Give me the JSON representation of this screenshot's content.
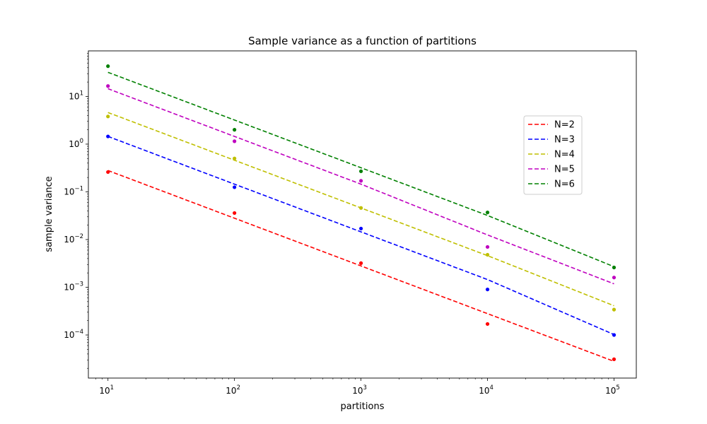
{
  "chart_data": {
    "type": "scatter",
    "title": "Sample variance as a function of partitions",
    "xlabel": "partitions",
    "ylabel": "sample variance",
    "xscale": "log",
    "yscale": "log",
    "xlim": [
      7,
      150000
    ],
    "ylim": [
      1.25e-05,
      90
    ],
    "x": [
      10,
      100,
      1000,
      10000,
      100000
    ],
    "x_ticks": [
      {
        "value": 10,
        "base": "10",
        "exp": "1"
      },
      {
        "value": 100,
        "base": "10",
        "exp": "2"
      },
      {
        "value": 1000,
        "base": "10",
        "exp": "3"
      },
      {
        "value": 10000,
        "base": "10",
        "exp": "4"
      },
      {
        "value": 100000,
        "base": "10",
        "exp": "5"
      }
    ],
    "y_ticks": [
      {
        "value": 0.0001,
        "base": "10",
        "exp": "−4"
      },
      {
        "value": 0.001,
        "base": "10",
        "exp": "−3"
      },
      {
        "value": 0.01,
        "base": "10",
        "exp": "−2"
      },
      {
        "value": 0.1,
        "base": "10",
        "exp": "−1"
      },
      {
        "value": 1,
        "base": "10",
        "exp": "0"
      },
      {
        "value": 10,
        "base": "10",
        "exp": "1"
      }
    ],
    "legend_position": "upper right (inset)",
    "grid": false,
    "series": [
      {
        "name": "N=2",
        "color": "#ff0000",
        "points": [
          0.26,
          0.036,
          0.0032,
          0.00017,
          3.1e-05
        ],
        "fit": [
          0.28,
          0.028,
          0.0028,
          0.00028,
          2.8e-05
        ]
      },
      {
        "name": "N=3",
        "color": "#0000ff",
        "points": [
          1.45,
          0.125,
          0.017,
          0.0009,
          0.0001
        ],
        "fit": [
          1.45,
          0.145,
          0.0145,
          0.00145,
          0.000102
        ]
      },
      {
        "name": "N=4",
        "color": "#bfbf00",
        "points": [
          3.8,
          0.5,
          0.046,
          0.0048,
          0.00034
        ],
        "fit": [
          4.6,
          0.46,
          0.046,
          0.0046,
          0.00041
        ]
      },
      {
        "name": "N=5",
        "color": "#bf00bf",
        "points": [
          16.5,
          1.15,
          0.17,
          0.007,
          0.0016
        ],
        "fit": [
          14.5,
          1.45,
          0.145,
          0.0125,
          0.00118
        ]
      },
      {
        "name": "N=6",
        "color": "#008000",
        "points": [
          43,
          2.0,
          0.27,
          0.037,
          0.0026
        ],
        "fit": [
          32,
          3.2,
          0.32,
          0.032,
          0.0027
        ]
      }
    ]
  }
}
